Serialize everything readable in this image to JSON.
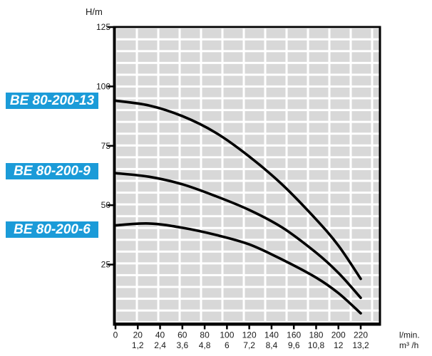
{
  "chart_data": {
    "type": "line",
    "title": "",
    "ylabel": "H/m",
    "xlabel_primary": "l/min.",
    "xlabel_secondary": "m³ /h",
    "x_ticks_lmin": [
      "0",
      "20",
      "40",
      "60",
      "80",
      "100",
      "120",
      "140",
      "160",
      "180",
      "200",
      "220"
    ],
    "x_ticks_m3h": [
      "",
      "1,2",
      "2,4",
      "3,6",
      "4,8",
      "6",
      "7,2",
      "8,4",
      "9,6",
      "10,8",
      "12",
      "13,2"
    ],
    "y_ticks": [
      "125",
      "100",
      "75",
      "50",
      "25"
    ],
    "ylim": [
      0,
      125
    ],
    "xlim_lmin": [
      0,
      238
    ],
    "grid": "brick-cells",
    "legend_position": "left-outside",
    "series": [
      {
        "name": "BE 80-200-13",
        "points_lmin_H": [
          [
            0,
            94
          ],
          [
            30,
            92
          ],
          [
            60,
            87.5
          ],
          [
            90,
            80.5
          ],
          [
            120,
            70.5
          ],
          [
            150,
            58.5
          ],
          [
            180,
            44
          ],
          [
            200,
            33
          ],
          [
            220,
            19
          ]
        ]
      },
      {
        "name": "BE 80-200-9",
        "points_lmin_H": [
          [
            0,
            63.5
          ],
          [
            30,
            62
          ],
          [
            60,
            58.8
          ],
          [
            90,
            53.8
          ],
          [
            120,
            48
          ],
          [
            150,
            40.5
          ],
          [
            180,
            30
          ],
          [
            200,
            21.5
          ],
          [
            220,
            11
          ]
        ]
      },
      {
        "name": "BE 80-200-6",
        "points_lmin_H": [
          [
            0,
            41.5
          ],
          [
            30,
            42.3
          ],
          [
            60,
            40.5
          ],
          [
            90,
            37.5
          ],
          [
            120,
            33.5
          ],
          [
            150,
            27
          ],
          [
            180,
            19.5
          ],
          [
            200,
            13
          ],
          [
            220,
            4.5
          ]
        ]
      }
    ]
  },
  "colors": {
    "series_label_bg": "#1b9bd8",
    "series_label_text": "#ffffff",
    "grid_cell": "#d8d8d8",
    "curve": "#000000",
    "axis": "#000000",
    "tick_text": "#1a1a1a"
  }
}
